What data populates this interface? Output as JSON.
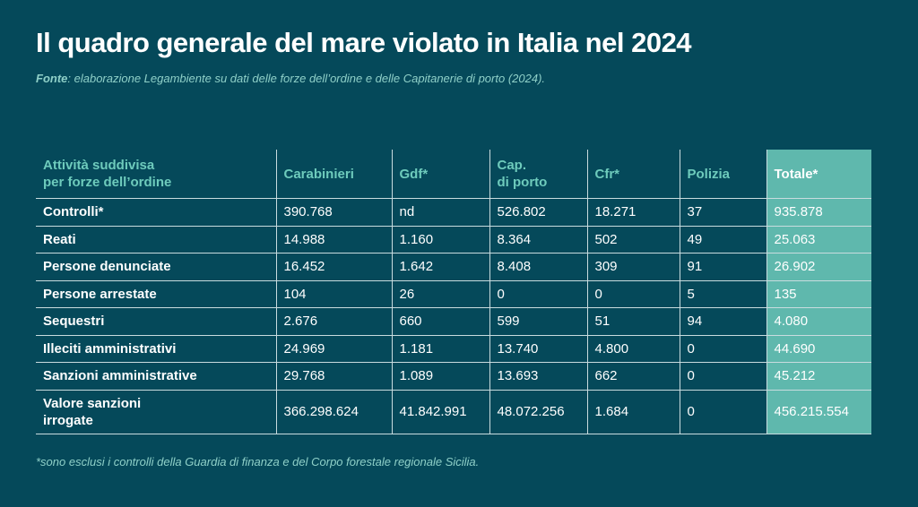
{
  "title": "Il quadro generale del mare violato in Italia nel 2024",
  "source": {
    "label": "Fonte",
    "text": ": elaborazione Legambiente su dati delle forze dell’ordine e delle Capitanerie di porto (2024)."
  },
  "table": {
    "headers": [
      [
        "Attività suddivisa",
        "per forze dell’ordine"
      ],
      [
        "Carabinieri"
      ],
      [
        "Gdf*"
      ],
      [
        "Cap.",
        "di porto"
      ],
      [
        "Cfr*"
      ],
      [
        "Polizia"
      ],
      [
        "Totale*"
      ]
    ],
    "rows": [
      {
        "label": [
          "Controlli*"
        ],
        "values": [
          "390.768",
          "nd",
          "526.802",
          "18.271",
          "37",
          "935.878"
        ]
      },
      {
        "label": [
          "Reati"
        ],
        "values": [
          "14.988",
          "1.160",
          "8.364",
          "502",
          "49",
          "25.063"
        ]
      },
      {
        "label": [
          "Persone denunciate"
        ],
        "values": [
          "16.452",
          "1.642",
          "8.408",
          "309",
          "91",
          "26.902"
        ]
      },
      {
        "label": [
          "Persone arrestate"
        ],
        "values": [
          "104",
          "26",
          "0",
          "0",
          "5",
          "135"
        ]
      },
      {
        "label": [
          "Sequestri"
        ],
        "values": [
          "2.676",
          "660",
          "599",
          "51",
          "94",
          "4.080"
        ]
      },
      {
        "label": [
          "Illeciti amministrativi"
        ],
        "values": [
          "24.969",
          "1.181",
          "13.740",
          "4.800",
          "0",
          "44.690"
        ]
      },
      {
        "label": [
          "Sanzioni amministrative"
        ],
        "values": [
          "29.768",
          "1.089",
          "13.693",
          "662",
          "0",
          "45.212"
        ]
      },
      {
        "label": [
          "Valore sanzioni",
          "irrogate"
        ],
        "values": [
          "366.298.624",
          "41.842.991",
          "48.072.256",
          "1.684",
          "0",
          "456.215.554"
        ]
      }
    ]
  },
  "footnote": "*sono esclusi i controlli della Guardia di finanza e del Corpo forestale regionale Sicilia.",
  "colors": {
    "background": "#05495a",
    "accent": "#6ecbbc",
    "total_column": "#5fb8ad",
    "grid_lines": "#c9dcdf"
  }
}
